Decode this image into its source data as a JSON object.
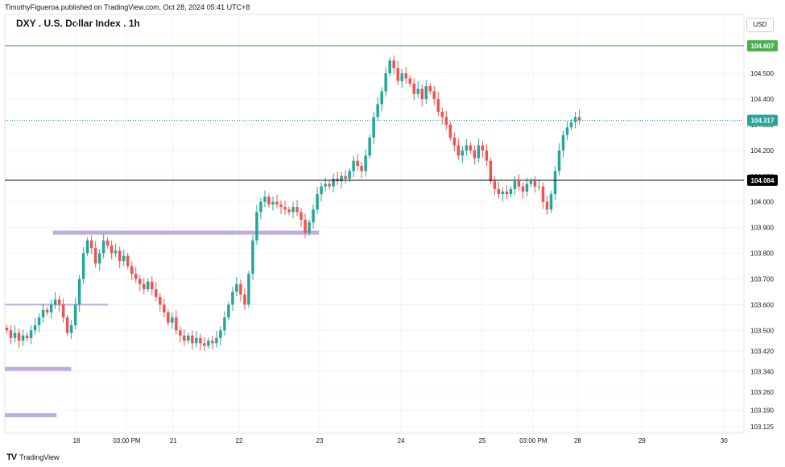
{
  "header": {
    "published_by": "TimothyFigueroa published on TradingView.com, Oct 28, 2024 05:41 UTC+8"
  },
  "title": "DXY . U.S. Dollar Index . 1h",
  "currency": "USD",
  "footer": {
    "brand": "TradingView",
    "logo_icon": "tradingview-logo-icon"
  },
  "colors": {
    "up": "#26a69a",
    "down": "#ef5350",
    "zone": "#b39ddb",
    "green_line": "#4caf50",
    "grid": "#f0f3fa",
    "axis_text": "#131722"
  },
  "chart_data": {
    "type": "candlestick",
    "symbol": "DXY",
    "timeframe": "1h",
    "ylim": [
      103.1,
      104.66
    ],
    "y_ticks": [
      104.5,
      104.4,
      104.3,
      104.2,
      104.1,
      104.0,
      103.9,
      103.8,
      103.7,
      103.6,
      103.5,
      103.42,
      103.34,
      103.26,
      103.19,
      103.125
    ],
    "x_ticks": [
      "18",
      "03:00 PM",
      "21",
      "22",
      "23",
      "24",
      "25",
      "03:00 PM",
      "28",
      "29",
      "30"
    ],
    "price_labels": [
      {
        "name": "green-level",
        "value": 104.607,
        "label": "104.607",
        "style": "solid",
        "color": "#4caf50"
      },
      {
        "name": "last-price",
        "value": 104.317,
        "label": "104.317",
        "style": "dotted",
        "color": "#26a69a"
      },
      {
        "name": "black-level",
        "value": 104.084,
        "label": "104.084",
        "style": "solid",
        "color": "#000000"
      }
    ],
    "zones": [
      {
        "y": 103.88,
        "x_start": 0.065,
        "x_end": 0.425
      },
      {
        "y": 103.6,
        "x_start": 0.0,
        "x_end": 0.14
      },
      {
        "y": 103.35,
        "x_start": 0.0,
        "x_end": 0.09
      },
      {
        "y": 103.17,
        "x_start": 0.0,
        "x_end": 0.07
      }
    ],
    "candles_close": [
      103.5,
      103.47,
      103.49,
      103.46,
      103.48,
      103.47,
      103.5,
      103.52,
      103.55,
      103.58,
      103.57,
      103.6,
      103.62,
      103.6,
      103.55,
      103.49,
      103.52,
      103.6,
      103.7,
      103.8,
      103.85,
      103.82,
      103.76,
      103.8,
      103.85,
      103.83,
      103.8,
      103.81,
      103.77,
      103.79,
      103.75,
      103.72,
      103.7,
      103.68,
      103.66,
      103.69,
      103.66,
      103.63,
      103.6,
      103.57,
      103.53,
      103.55,
      103.5,
      103.48,
      103.46,
      103.48,
      103.45,
      103.47,
      103.45,
      103.44,
      103.46,
      103.45,
      103.47,
      103.5,
      103.55,
      103.6,
      103.65,
      103.68,
      103.64,
      103.6,
      103.72,
      103.85,
      103.96,
      104.0,
      104.02,
      103.99,
      104.0,
      103.99,
      103.98,
      103.97,
      103.96,
      103.98,
      103.96,
      103.93,
      103.88,
      103.92,
      103.97,
      104.03,
      104.06,
      104.07,
      104.06,
      104.09,
      104.08,
      104.1,
      104.09,
      104.12,
      104.16,
      104.14,
      104.12,
      104.18,
      104.25,
      104.33,
      104.38,
      104.43,
      104.5,
      104.55,
      104.52,
      104.47,
      104.5,
      104.48,
      104.46,
      104.42,
      104.44,
      104.4,
      104.45,
      104.43,
      104.4,
      104.35,
      104.33,
      104.3,
      104.25,
      104.22,
      104.18,
      104.2,
      104.22,
      104.2,
      104.17,
      104.22,
      104.2,
      104.16,
      104.08,
      104.05,
      104.03,
      104.04,
      104.03,
      104.05,
      104.08,
      104.06,
      104.04,
      104.07,
      104.08,
      104.06,
      104.06,
      104.0,
      103.97,
      104.03,
      104.12,
      104.2,
      104.26,
      104.29,
      104.31,
      104.33,
      104.317
    ],
    "candle_x_range": [
      0.0,
      0.78
    ]
  }
}
